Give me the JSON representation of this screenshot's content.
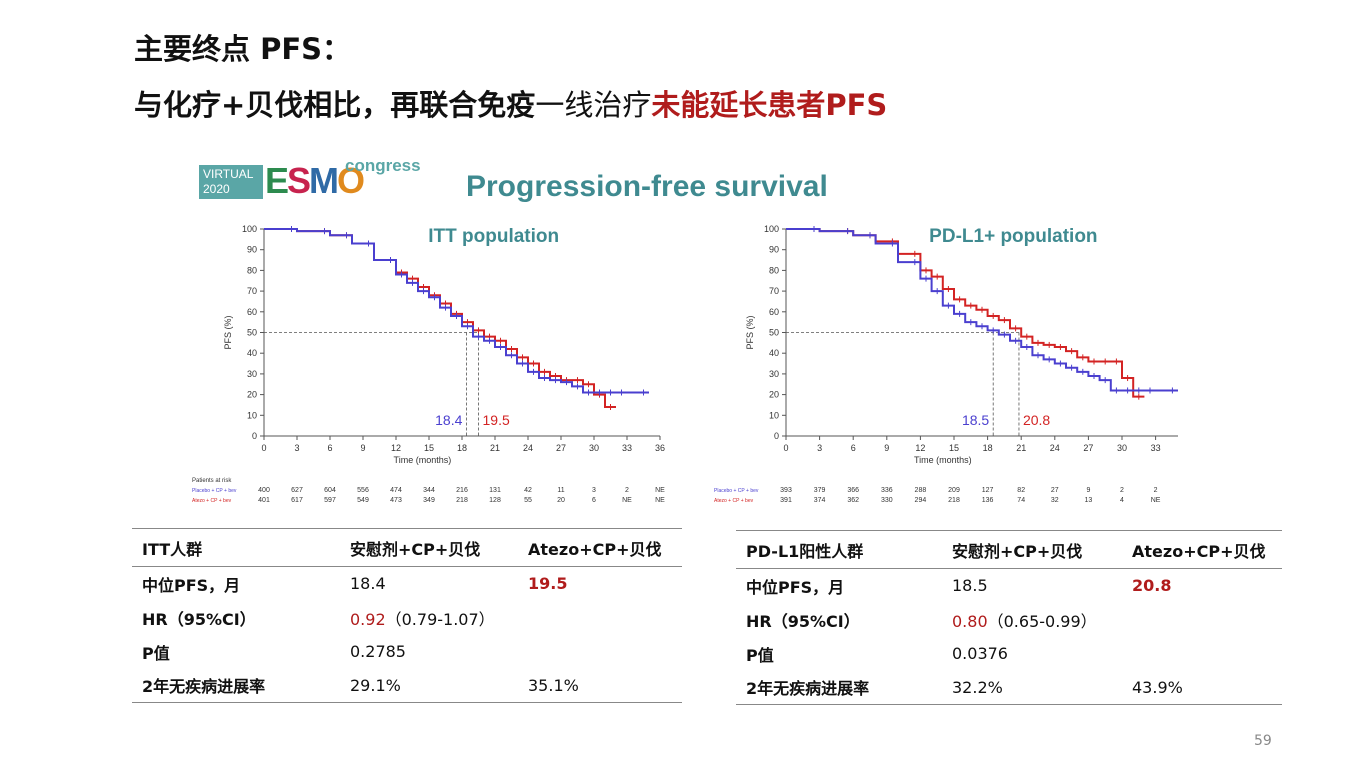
{
  "slide": {
    "title_line1": "主要终点 PFS：",
    "title_line2_part1": "与化疗+贝伐相比，再联合免疫",
    "title_line2_part2": "一线治疗",
    "title_line2_part3": "未能延长患者PFS",
    "page_number": "59"
  },
  "logo": {
    "virtual_line1": "VIRTUAL",
    "virtual_line2": "2020",
    "esmo": [
      "E",
      "S",
      "M",
      "O"
    ],
    "congress": "congress"
  },
  "figure_title": "Progression-free survival",
  "colors": {
    "placebo": "#4a3fcf",
    "atezo": "#d32323",
    "accent_red": "#b01c1c",
    "teal": "#3f8a90"
  },
  "chart_data": [
    {
      "type": "line",
      "title": "ITT population",
      "xlabel": "Time (months)",
      "ylabel": "PFS (%)",
      "xlim": [
        0,
        36
      ],
      "ylim": [
        0,
        100
      ],
      "xticks": [
        0,
        3,
        6,
        9,
        12,
        15,
        18,
        21,
        24,
        27,
        30,
        33,
        36
      ],
      "yticks": [
        0,
        10,
        20,
        30,
        40,
        50,
        60,
        70,
        80,
        90,
        100
      ],
      "median_line": 50,
      "medians": [
        {
          "label": "18.4",
          "x": 18.4,
          "series": "Placebo + CP + bev"
        },
        {
          "label": "19.5",
          "x": 19.5,
          "series": "Atezo + CP + bev"
        }
      ],
      "series": [
        {
          "name": "Placebo + CP + bev",
          "color": "#4a3fcf",
          "x": [
            0,
            3,
            6,
            8,
            10,
            12,
            13,
            14,
            15,
            16,
            17,
            18,
            19,
            20,
            21,
            22,
            23,
            24,
            25,
            26,
            27,
            28,
            29,
            30,
            31,
            32,
            33,
            35
          ],
          "y": [
            100,
            99,
            97,
            93,
            85,
            78,
            74,
            70,
            67,
            62,
            58,
            53,
            48,
            46,
            43,
            39,
            35,
            31,
            28,
            27,
            26,
            24,
            21,
            21,
            21,
            21,
            21,
            21
          ]
        },
        {
          "name": "Atezo + CP + bev",
          "color": "#d32323",
          "x": [
            0,
            3,
            6,
            8,
            10,
            12,
            13,
            14,
            15,
            16,
            17,
            18,
            19,
            20,
            21,
            22,
            23,
            24,
            25,
            26,
            27,
            28,
            29,
            30,
            31,
            32
          ],
          "y": [
            100,
            99,
            97,
            93,
            85,
            79,
            76,
            72,
            68,
            64,
            59,
            55,
            51,
            48,
            46,
            42,
            38,
            35,
            31,
            29,
            27,
            27,
            25,
            20,
            14,
            14
          ]
        }
      ],
      "risk_table": {
        "header": "Patients at risk",
        "rows": [
          {
            "label": "Placebo + CP + bev",
            "values": [
              "400",
              "627",
              "604",
              "556",
              "474",
              "344",
              "216",
              "131",
              "42",
              "11",
              "3",
              "2",
              "NE"
            ]
          },
          {
            "label": "Atezo + CP + bev",
            "values": [
              "401",
              "617",
              "597",
              "549",
              "473",
              "349",
              "218",
              "128",
              "55",
              "20",
              "6",
              "NE",
              "NE"
            ]
          }
        ]
      }
    },
    {
      "type": "line",
      "title": "PD-L1+ population",
      "xlabel": "Time (months)",
      "ylabel": "PFS (%)",
      "xlim": [
        0,
        35
      ],
      "ylim": [
        0,
        100
      ],
      "xticks": [
        0,
        3,
        6,
        9,
        12,
        15,
        18,
        21,
        24,
        27,
        30,
        33
      ],
      "yticks": [
        0,
        10,
        20,
        30,
        40,
        50,
        60,
        70,
        80,
        90,
        100
      ],
      "median_line": 50,
      "medians": [
        {
          "label": "18.5",
          "x": 18.5,
          "series": "Placebo + CP + bev"
        },
        {
          "label": "20.8",
          "x": 20.8,
          "series": "Atezo + CP + bev"
        }
      ],
      "series": [
        {
          "name": "Placebo + CP + bev",
          "color": "#4a3fcf",
          "x": [
            0,
            3,
            6,
            8,
            10,
            12,
            13,
            14,
            15,
            16,
            17,
            18,
            19,
            20,
            21,
            22,
            23,
            24,
            25,
            26,
            27,
            28,
            29,
            30,
            31,
            32,
            33,
            35
          ],
          "y": [
            100,
            99,
            97,
            93,
            84,
            76,
            70,
            63,
            59,
            55,
            53,
            51,
            49,
            46,
            43,
            39,
            37,
            35,
            33,
            31,
            29,
            27,
            22,
            22,
            22,
            22,
            22,
            22
          ]
        },
        {
          "name": "Atezo + CP + bev",
          "color": "#d32323",
          "x": [
            0,
            3,
            6,
            8,
            10,
            12,
            13,
            14,
            15,
            16,
            17,
            18,
            19,
            20,
            21,
            22,
            23,
            24,
            25,
            26,
            27,
            28,
            29,
            30,
            31,
            32
          ],
          "y": [
            100,
            99,
            97,
            94,
            88,
            80,
            77,
            71,
            66,
            63,
            61,
            58,
            56,
            52,
            48,
            45,
            44,
            43,
            41,
            38,
            36,
            36,
            36,
            28,
            19,
            19
          ]
        }
      ],
      "risk_table": {
        "rows": [
          {
            "label": "Placebo + CP + bev",
            "values": [
              "393",
              "379",
              "366",
              "336",
              "288",
              "209",
              "127",
              "82",
              "27",
              "9",
              "2",
              "2"
            ]
          },
          {
            "label": "Atezo + CP + bev",
            "values": [
              "391",
              "374",
              "362",
              "330",
              "294",
              "218",
              "136",
              "74",
              "32",
              "13",
              "4",
              "NE"
            ]
          }
        ]
      }
    }
  ],
  "tables": {
    "itt": {
      "header": [
        "ITT人群",
        "安慰剂+CP+贝伐",
        "Atezo+CP+贝伐"
      ],
      "rows": [
        {
          "label": "中位PFS，月",
          "c1": "18.4",
          "c1_hr": "",
          "c2": "19.5"
        },
        {
          "label": "HR（95%CI）",
          "c1": "0.92",
          "c1_hr": "（0.79-1.07）",
          "c2": ""
        },
        {
          "label": "P值",
          "c1": "0.2785",
          "c1_hr": "",
          "c2": ""
        },
        {
          "label": "2年无疾病进展率",
          "c1": "29.1%",
          "c1_hr": "",
          "c2": "35.1%"
        }
      ]
    },
    "pdl1": {
      "header": [
        "PD-L1阳性人群",
        "安慰剂+CP+贝伐",
        "Atezo+CP+贝伐"
      ],
      "rows": [
        {
          "label": "中位PFS，月",
          "c1": "18.5",
          "c1_hr": "",
          "c2": "20.8"
        },
        {
          "label": "HR（95%CI）",
          "c1": "0.80",
          "c1_hr": "（0.65-0.99）",
          "c2": ""
        },
        {
          "label": "P值",
          "c1": "0.0376",
          "c1_hr": "",
          "c2": ""
        },
        {
          "label": "2年无疾病进展率",
          "c1": "32.2%",
          "c1_hr": "",
          "c2": "43.9%"
        }
      ]
    }
  }
}
